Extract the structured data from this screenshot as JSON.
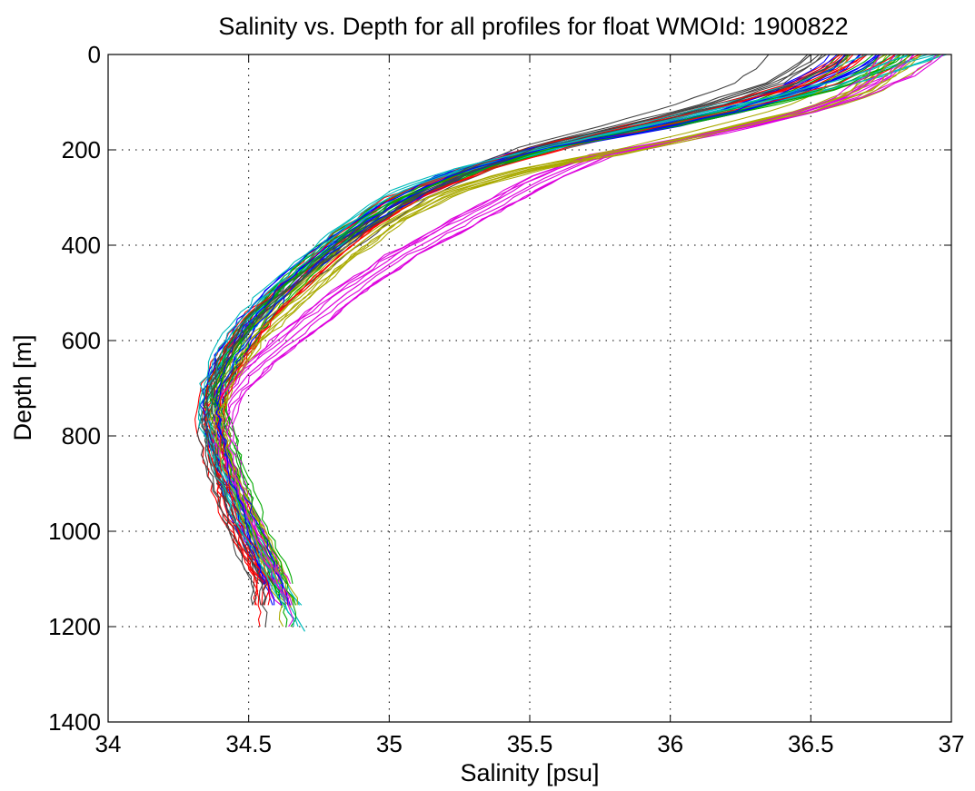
{
  "chart_data": {
    "type": "line",
    "title": "Salinity vs. Depth for all profiles for float WMOId: 1900822",
    "xlabel": "Salinity [psu]",
    "ylabel": "Depth [m]",
    "xlim": [
      34,
      37
    ],
    "ylim": [
      0,
      1400
    ],
    "y_reversed": true,
    "grid": true,
    "legend": "none",
    "xticks": [
      "34",
      "34.5",
      "35",
      "35.5",
      "36",
      "36.5",
      "37"
    ],
    "yticks": [
      "0",
      "200",
      "400",
      "600",
      "800",
      "1000",
      "1200",
      "1400"
    ],
    "palette": [
      "#ff0000",
      "#00aa00",
      "#0000ff",
      "#00bbbb",
      "#dd00dd",
      "#aaaa00",
      "#444444"
    ],
    "profile_count": 63,
    "series": [
      {
        "name": "",
        "color": "#0000ff",
        "points": [
          [
            36.75,
            0
          ],
          [
            36.7,
            20
          ],
          [
            36.55,
            60
          ],
          [
            36.3,
            100
          ],
          [
            36.0,
            140
          ],
          [
            35.6,
            190
          ],
          [
            35.3,
            240
          ],
          [
            35.05,
            300
          ],
          [
            34.85,
            380
          ],
          [
            34.7,
            460
          ],
          [
            34.55,
            540
          ],
          [
            34.45,
            620
          ],
          [
            34.38,
            700
          ],
          [
            34.36,
            760
          ],
          [
            34.38,
            850
          ],
          [
            34.42,
            950
          ],
          [
            34.5,
            1050
          ],
          [
            34.55,
            1110
          ]
        ]
      },
      {
        "name": "",
        "color": "#ff0000",
        "points": [
          [
            36.7,
            0
          ],
          [
            36.65,
            25
          ],
          [
            36.5,
            70
          ],
          [
            36.25,
            110
          ],
          [
            35.95,
            150
          ],
          [
            35.55,
            195
          ],
          [
            35.25,
            250
          ],
          [
            35.0,
            310
          ],
          [
            34.8,
            390
          ],
          [
            34.65,
            470
          ],
          [
            34.52,
            550
          ],
          [
            34.43,
            630
          ],
          [
            34.37,
            710
          ],
          [
            34.4,
            780
          ],
          [
            34.46,
            880
          ],
          [
            34.52,
            980
          ],
          [
            34.6,
            1080
          ],
          [
            34.65,
            1160
          ]
        ]
      },
      {
        "name": "",
        "color": "#00aa00",
        "points": [
          [
            36.6,
            0
          ],
          [
            36.55,
            30
          ],
          [
            36.4,
            75
          ],
          [
            36.2,
            120
          ],
          [
            35.9,
            160
          ],
          [
            35.5,
            200
          ],
          [
            35.2,
            260
          ],
          [
            34.98,
            330
          ],
          [
            34.78,
            410
          ],
          [
            34.62,
            490
          ],
          [
            34.5,
            570
          ],
          [
            34.42,
            650
          ],
          [
            34.38,
            730
          ],
          [
            34.4,
            800
          ],
          [
            34.45,
            900
          ],
          [
            34.52,
            1000
          ],
          [
            34.58,
            1100
          ],
          [
            34.62,
            1160
          ]
        ]
      },
      {
        "name": "",
        "color": "#00bbbb",
        "points": [
          [
            36.82,
            0
          ],
          [
            36.75,
            15
          ],
          [
            36.6,
            50
          ],
          [
            36.35,
            90
          ],
          [
            36.05,
            130
          ],
          [
            35.65,
            185
          ],
          [
            35.3,
            235
          ],
          [
            35.05,
            290
          ],
          [
            34.85,
            370
          ],
          [
            34.72,
            440
          ],
          [
            34.58,
            510
          ],
          [
            34.45,
            600
          ],
          [
            34.38,
            690
          ],
          [
            34.36,
            770
          ],
          [
            34.4,
            860
          ],
          [
            34.48,
            980
          ],
          [
            34.6,
            1110
          ],
          [
            34.7,
            1210
          ]
        ]
      },
      {
        "name": "",
        "color": "#dd00dd",
        "points": [
          [
            36.8,
            0
          ],
          [
            36.75,
            40
          ],
          [
            36.6,
            90
          ],
          [
            36.4,
            130
          ],
          [
            36.1,
            170
          ],
          [
            35.75,
            210
          ],
          [
            35.55,
            260
          ],
          [
            35.3,
            340
          ],
          [
            35.05,
            420
          ],
          [
            34.85,
            500
          ],
          [
            34.68,
            580
          ],
          [
            34.5,
            670
          ],
          [
            34.42,
            730
          ],
          [
            34.4,
            800
          ],
          [
            34.45,
            900
          ],
          [
            34.52,
            1000
          ],
          [
            34.6,
            1100
          ],
          [
            34.65,
            1160
          ]
        ]
      },
      {
        "name": "",
        "color": "#aaaa00",
        "points": [
          [
            36.8,
            0
          ],
          [
            36.75,
            30
          ],
          [
            36.65,
            80
          ],
          [
            36.45,
            120
          ],
          [
            36.15,
            160
          ],
          [
            35.85,
            200
          ],
          [
            35.5,
            240
          ],
          [
            35.2,
            290
          ],
          [
            35.0,
            350
          ],
          [
            34.82,
            430
          ],
          [
            34.65,
            520
          ],
          [
            34.5,
            600
          ],
          [
            34.42,
            680
          ],
          [
            34.38,
            750
          ],
          [
            34.42,
            850
          ],
          [
            34.5,
            970
          ],
          [
            34.6,
            1100
          ],
          [
            34.65,
            1160
          ]
        ]
      },
      {
        "name": "",
        "color": "#444444",
        "points": [
          [
            36.5,
            0
          ],
          [
            36.45,
            25
          ],
          [
            36.35,
            60
          ],
          [
            36.15,
            100
          ],
          [
            35.9,
            140
          ],
          [
            35.55,
            190
          ],
          [
            35.3,
            245
          ],
          [
            35.1,
            300
          ],
          [
            34.9,
            380
          ],
          [
            34.72,
            460
          ],
          [
            34.56,
            540
          ],
          [
            34.45,
            620
          ],
          [
            34.38,
            700
          ],
          [
            34.36,
            770
          ],
          [
            34.38,
            860
          ],
          [
            34.44,
            960
          ],
          [
            34.5,
            1050
          ],
          [
            34.55,
            1110
          ]
        ]
      }
    ]
  }
}
